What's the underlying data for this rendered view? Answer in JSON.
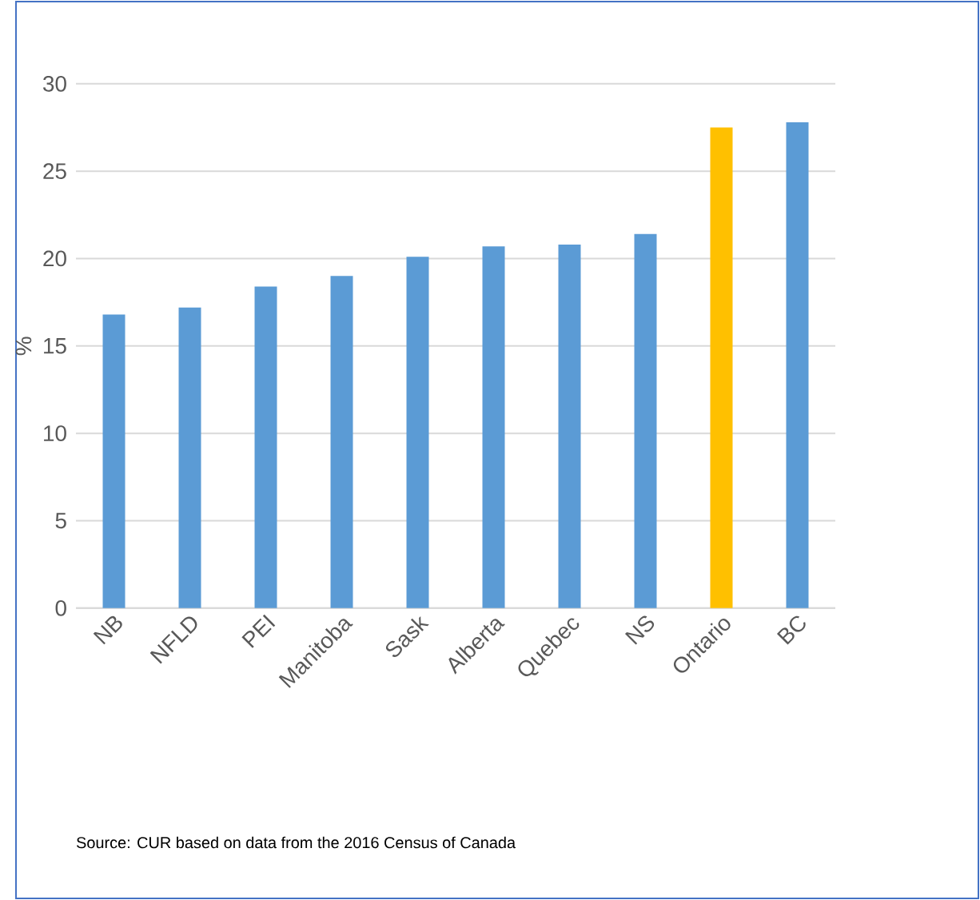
{
  "chart_data": {
    "type": "bar",
    "ylabel": "%",
    "categories": [
      "NB",
      "NFLD",
      "PEI",
      "Manitoba",
      "Sask",
      "Alberta",
      "Quebec",
      "NS",
      "Ontario",
      "BC"
    ],
    "values": [
      16.8,
      17.2,
      18.4,
      19.0,
      20.1,
      20.7,
      20.8,
      21.4,
      27.5,
      27.8
    ],
    "colors": [
      "#5b9bd5",
      "#5b9bd5",
      "#5b9bd5",
      "#5b9bd5",
      "#5b9bd5",
      "#5b9bd5",
      "#5b9bd5",
      "#5b9bd5",
      "#ffc000",
      "#5b9bd5"
    ],
    "ylim": [
      0,
      30
    ],
    "yticks": [
      0,
      5,
      10,
      15,
      20,
      25,
      30
    ],
    "grid": "y",
    "annotations": [
      "Source: CUR based on data from the 2016 Census of Canada"
    ]
  }
}
